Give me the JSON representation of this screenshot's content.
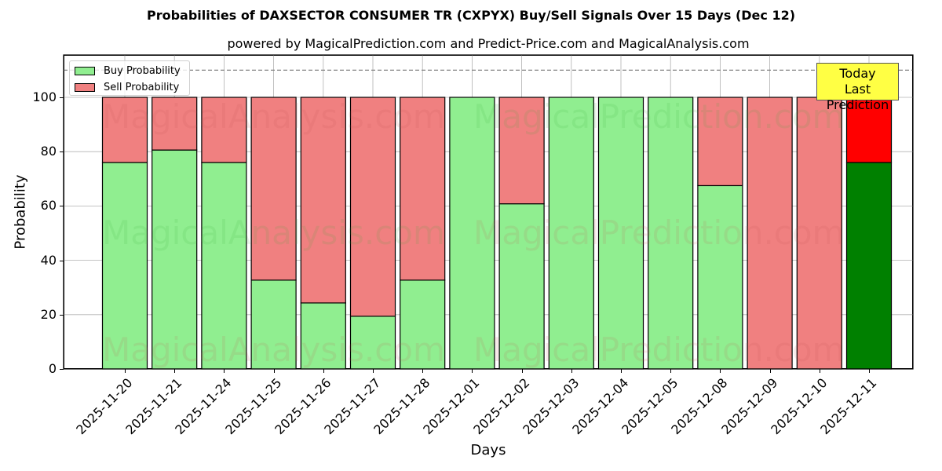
{
  "header": {
    "title": "Probabilities of DAXSECTOR CONSUMER TR (CXPYX) Buy/Sell Signals Over 15 Days (Dec 12)",
    "subtitle": "powered by MagicalPrediction.com and Predict-Price.com and MagicalAnalysis.com"
  },
  "legend": {
    "buy_label": "Buy Probability",
    "sell_label": "Sell Probability"
  },
  "annotation": {
    "line1": "Today",
    "line2": "Last Prediction"
  },
  "watermarks": {
    "left": "MagicalAnalysis.com",
    "right": "MagicalPrediction.com"
  },
  "colors": {
    "buy": "#90ee90",
    "sell": "#f08080",
    "buy_today": "#008000",
    "sell_today": "#ff0000",
    "annotation_bg": "#ffff44"
  },
  "chart_data": {
    "type": "bar",
    "stacked": true,
    "title": "Probabilities of DAXSECTOR CONSUMER TR (CXPYX) Buy/Sell Signals Over 15 Days (Dec 12)",
    "subtitle": "powered by MagicalPrediction.com and Predict-Price.com and MagicalAnalysis.com",
    "xlabel": "Days",
    "ylabel": "Probability",
    "ylim": [
      0,
      115.6
    ],
    "yticks": [
      0,
      20,
      40,
      60,
      80,
      100
    ],
    "grid": true,
    "legend_position": "upper left",
    "reference_line": {
      "y": 110,
      "style": "dashed",
      "color": "#808080"
    },
    "categories": [
      "2025-11-20",
      "2025-11-21",
      "2025-11-24",
      "2025-11-25",
      "2025-11-26",
      "2025-11-27",
      "2025-11-28",
      "2025-12-01",
      "2025-12-02",
      "2025-12-03",
      "2025-12-04",
      "2025-12-05",
      "2025-12-08",
      "2025-12-09",
      "2025-12-10",
      "2025-12-11"
    ],
    "series": [
      {
        "name": "Buy Probability",
        "values": [
          76.0,
          80.6,
          76.0,
          32.7,
          24.3,
          19.4,
          32.7,
          100.0,
          60.8,
          100.0,
          100.0,
          100.0,
          67.5,
          0.0,
          0.0,
          76.0
        ]
      },
      {
        "name": "Sell Probability",
        "values": [
          24.0,
          19.4,
          24.0,
          67.3,
          75.7,
          80.6,
          67.3,
          0.0,
          39.2,
          0.0,
          0.0,
          0.0,
          32.5,
          100.0,
          100.0,
          24.0
        ]
      }
    ],
    "highlight": {
      "category": "2025-12-11",
      "label": "Today\nLast Prediction"
    }
  }
}
